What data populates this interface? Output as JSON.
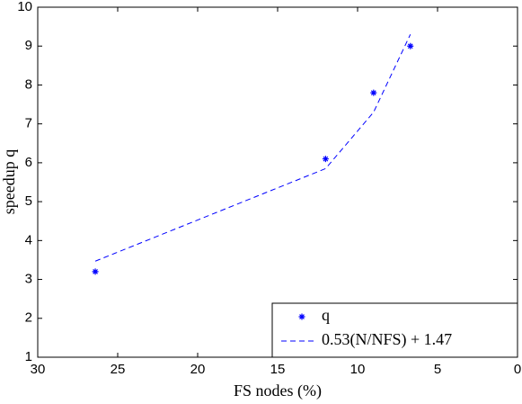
{
  "chart_data": {
    "type": "scatter",
    "x_label": "FS nodes (%)",
    "y_label": "speedup q",
    "xlim": [
      30,
      0
    ],
    "xticks": [
      30,
      25,
      20,
      15,
      10,
      5,
      0
    ],
    "ylim": [
      1,
      10
    ],
    "yticks": [
      1,
      2,
      3,
      4,
      5,
      6,
      7,
      8,
      9,
      10
    ],
    "legend": "lower right",
    "series": [
      {
        "name": "q",
        "color": "#0000ff",
        "marker": "*",
        "x": [
          26.4,
          12.0,
          9.0,
          6.7
        ],
        "values": [
          3.2,
          6.1,
          7.8,
          9.0
        ]
      },
      {
        "name": "0.53(N/NFS) + 1.47",
        "color": "#0000ff",
        "line_style": "dashed",
        "x": [
          26.4,
          12.0,
          9.0,
          6.7
        ],
        "values": [
          3.47,
          5.85,
          7.3,
          9.3
        ]
      }
    ]
  }
}
